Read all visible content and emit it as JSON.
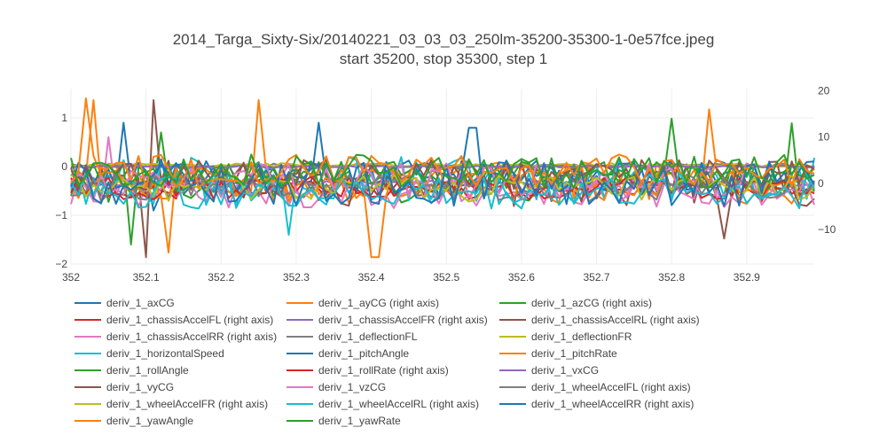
{
  "title": "2014_Targa_Sixty-Six/20140221_03_03_03_250lm-35200-35300-1-0e57fce.jpeg",
  "subtitle": "start 35200, stop 35300, step 1",
  "chart_data": {
    "type": "line",
    "title": "2014_Targa_Sixty-Six/20140221_03_03_03_250lm-35200-35300-1-0e57fce.jpeg",
    "subtitle": "start 35200, stop 35300, step 1",
    "x_range": [
      352.0,
      352.99
    ],
    "x_ticks": [
      "352",
      "352.1",
      "352.2",
      "352.3",
      "352.4",
      "352.5",
      "352.6",
      "352.7",
      "352.8",
      "352.9"
    ],
    "y_left_range": [
      -2,
      1.6
    ],
    "y_left_ticks": [
      "1",
      "0",
      "−1",
      "−2"
    ],
    "y_right_range": [
      -17.5,
      20.5
    ],
    "y_right_ticks": [
      "20",
      "10",
      "0",
      "−10"
    ],
    "grid": true,
    "legend_position": "bottom",
    "series": [
      {
        "name": "deriv_1_axCG",
        "color": "#1f77b4",
        "axis": "left",
        "amp": 0.3,
        "offset": -0.3,
        "spikes": [
          [
            0.07,
            0.9
          ],
          [
            0.11,
            -0.9
          ],
          [
            0.33,
            0.9
          ]
        ]
      },
      {
        "name": "deriv_1_ayCG (right axis)",
        "color": "#ff7f0e",
        "axis": "right",
        "amp": 4.5,
        "offset": 0,
        "spikes": [
          [
            0.03,
            18
          ],
          [
            0.13,
            -15
          ],
          [
            0.25,
            18
          ],
          [
            0.86,
            16
          ]
        ]
      },
      {
        "name": "deriv_1_azCG (right axis)",
        "color": "#2ca02c",
        "axis": "right",
        "amp": 4.5,
        "offset": 0,
        "spikes": [
          [
            0.12,
            11
          ],
          [
            0.81,
            14
          ],
          [
            0.97,
            13
          ]
        ]
      },
      {
        "name": "deriv_1_chassisAccelFL (right axis)",
        "color": "#d62728",
        "axis": "right",
        "amp": 2.5,
        "offset": -1,
        "spikes": []
      },
      {
        "name": "deriv_1_chassisAccelFR (right axis)",
        "color": "#9467bd",
        "axis": "right",
        "amp": 0.6,
        "offset": 0,
        "spikes": []
      },
      {
        "name": "deriv_1_chassisAccelRL (right axis)",
        "color": "#8c564b",
        "axis": "right",
        "amp": 5,
        "offset": 0,
        "spikes": [
          [
            0.1,
            -16
          ],
          [
            0.11,
            18
          ],
          [
            0.88,
            -12
          ]
        ]
      },
      {
        "name": "deriv_1_chassisAccelRR (right axis)",
        "color": "#e377c2",
        "axis": "right",
        "amp": 3.5,
        "offset": -2,
        "spikes": [
          [
            0.05,
            10
          ]
        ]
      },
      {
        "name": "deriv_1_deflectionFL",
        "color": "#7f7f7f",
        "axis": "left",
        "amp": 0.04,
        "offset": 0.02,
        "spikes": []
      },
      {
        "name": "deriv_1_deflectionFR",
        "color": "#bcbd22",
        "axis": "left",
        "amp": 0.04,
        "offset": 0.03,
        "spikes": []
      },
      {
        "name": "deriv_1_horizontalSpeed",
        "color": "#17becf",
        "axis": "left",
        "amp": 0.5,
        "offset": -0.3,
        "spikes": [
          [
            0.29,
            -1.4
          ]
        ]
      },
      {
        "name": "deriv_1_pitchAngle",
        "color": "#1f77b4",
        "axis": "left",
        "amp": 0.35,
        "offset": -0.2,
        "spikes": []
      },
      {
        "name": "deriv_1_pitchRate",
        "color": "#ff7f0e",
        "axis": "right",
        "amp": 4,
        "offset": 0,
        "spikes": [
          [
            0.41,
            -16
          ]
        ]
      },
      {
        "name": "deriv_1_rollAngle",
        "color": "#2ca02c",
        "axis": "left",
        "amp": 0.3,
        "offset": -0.2,
        "spikes": [
          [
            0.08,
            -1.6
          ]
        ]
      },
      {
        "name": "deriv_1_rollRate (right axis)",
        "color": "#d62728",
        "axis": "right",
        "amp": 2.5,
        "offset": -1,
        "spikes": []
      },
      {
        "name": "deriv_1_vxCG",
        "color": "#9467bd",
        "axis": "left",
        "amp": 0.03,
        "offset": 0,
        "spikes": []
      },
      {
        "name": "deriv_1_vyCG",
        "color": "#8c564b",
        "axis": "left",
        "amp": 0.35,
        "offset": -0.2,
        "spikes": []
      },
      {
        "name": "deriv_1_vzCG",
        "color": "#e377c2",
        "axis": "left",
        "amp": 0.4,
        "offset": -0.3,
        "spikes": []
      },
      {
        "name": "deriv_1_wheelAccelFL (right axis)",
        "color": "#7f7f7f",
        "axis": "right",
        "amp": 3,
        "offset": -1,
        "spikes": []
      },
      {
        "name": "deriv_1_wheelAccelFR (right axis)",
        "color": "#bcbd22",
        "axis": "right",
        "amp": 3,
        "offset": -1,
        "spikes": []
      },
      {
        "name": "deriv_1_wheelAccelRL (right axis)",
        "color": "#17becf",
        "axis": "right",
        "amp": 4,
        "offset": -1.5,
        "spikes": []
      },
      {
        "name": "deriv_1_wheelAccelRR (right axis)",
        "color": "#1f77b4",
        "axis": "right",
        "amp": 5,
        "offset": 0,
        "spikes": [
          [
            0.54,
            12
          ]
        ]
      },
      {
        "name": "deriv_1_yawAngle",
        "color": "#ff7f0e",
        "axis": "left",
        "amp": 0.35,
        "offset": -0.1,
        "spikes": [
          [
            0.02,
            1.4
          ]
        ]
      },
      {
        "name": "deriv_1_yawRate",
        "color": "#2ca02c",
        "axis": "left",
        "amp": 0.35,
        "offset": -0.1,
        "spikes": []
      }
    ]
  }
}
